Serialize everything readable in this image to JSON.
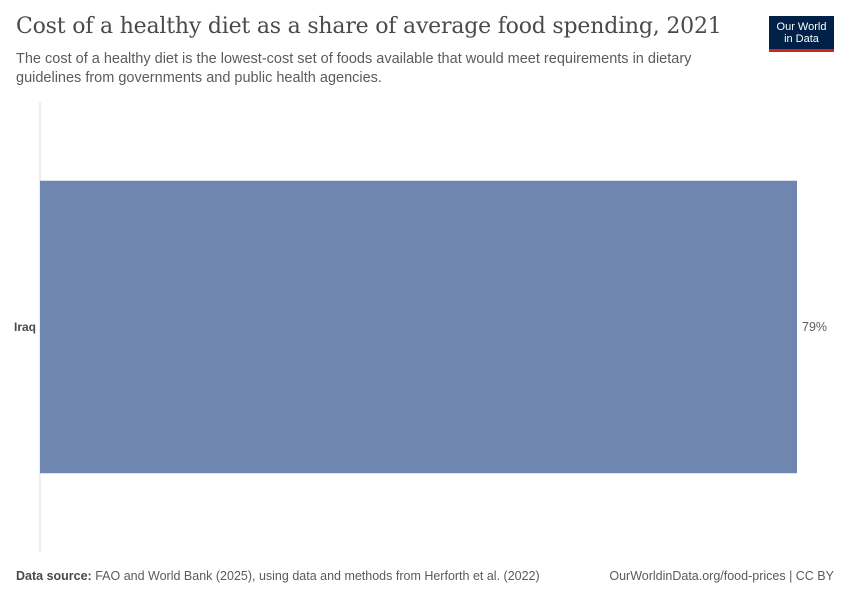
{
  "header": {
    "title": "Cost of a healthy diet as a share of average food spending, 2021",
    "subtitle": "The cost of a healthy diet is the lowest-cost set of foods available that would meet requirements in dietary guidelines from governments and public health agencies."
  },
  "logo": {
    "line1": "Our World",
    "line2": "in Data"
  },
  "footer": {
    "source_label": "Data source:",
    "source_text": "FAO and World Bank (2025), using data and methods from Herforth et al. (2022)",
    "url": "OurWorldinData.org/food-prices | CC BY"
  },
  "colors": {
    "bar": "#6f87b0",
    "axis": "#dddddd"
  },
  "chart_data": {
    "type": "bar",
    "orientation": "horizontal",
    "categories": [
      "Iraq"
    ],
    "values": [
      79
    ],
    "value_labels": [
      "79%"
    ],
    "xlim": [
      0,
      79
    ],
    "unit": "%"
  }
}
